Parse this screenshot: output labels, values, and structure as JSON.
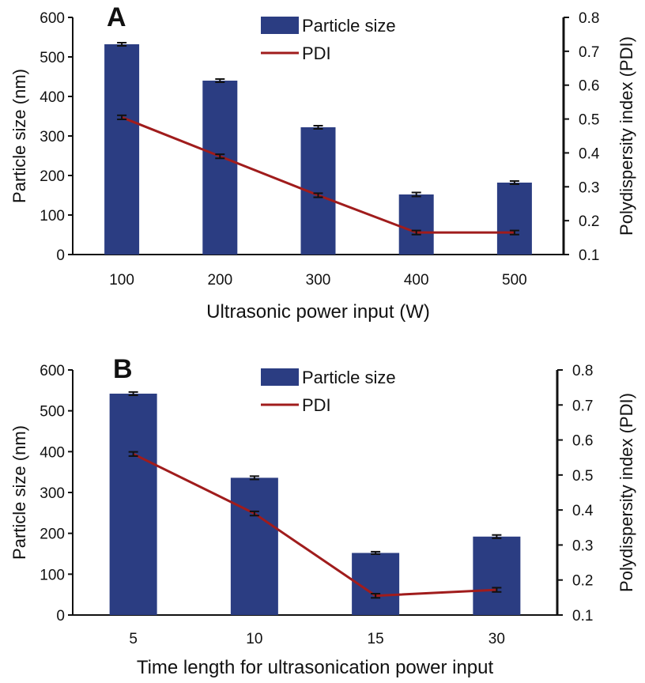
{
  "chart_data": [
    {
      "type": "bar",
      "panel_label": "A",
      "categories": [
        "100",
        "200",
        "300",
        "400",
        "500"
      ],
      "xlabel": "Ultrasonic power input (W)",
      "ylabel": "Particle size (nm)",
      "y2label": "Polydispersity index (PDI)",
      "ylim": [
        0,
        600
      ],
      "yticks": [
        "0",
        "100",
        "200",
        "300",
        "400",
        "500",
        "600"
      ],
      "y2lim": [
        0.1,
        0.8
      ],
      "y2ticks": [
        "0.1",
        "0.2",
        "0.3",
        "0.4",
        "0.5",
        "0.6",
        "0.7",
        "0.8"
      ],
      "legend_position": "top-center",
      "series": [
        {
          "name": "Particle size",
          "type": "bar",
          "axis": "left",
          "color": "#2b3d82",
          "values": [
            532,
            440,
            322,
            152,
            182
          ],
          "errors": [
            4,
            4,
            4,
            5,
            4
          ]
        },
        {
          "name": "PDI",
          "type": "line",
          "axis": "right",
          "color": "#a01c1c",
          "values": [
            0.505,
            0.39,
            0.275,
            0.165,
            0.165
          ],
          "errors": [
            0.006,
            0.006,
            0.006,
            0.006,
            0.006
          ]
        }
      ]
    },
    {
      "type": "bar",
      "panel_label": "B",
      "categories": [
        "5",
        "10",
        "15",
        "30"
      ],
      "xlabel": "Time length for ultrasonication power input",
      "ylabel": "Particle size (nm)",
      "y2label": "Polydispersity index (PDI)",
      "ylim": [
        0,
        600
      ],
      "yticks": [
        "0",
        "100",
        "200",
        "300",
        "400",
        "500",
        "600"
      ],
      "y2lim": [
        0.1,
        0.8
      ],
      "y2ticks": [
        "0.1",
        "0.2",
        "0.3",
        "0.4",
        "0.5",
        "0.6",
        "0.7",
        "0.8"
      ],
      "legend_position": "top-center",
      "series": [
        {
          "name": "Particle size",
          "type": "bar",
          "axis": "left",
          "color": "#2b3d82",
          "values": [
            542,
            336,
            152,
            192
          ],
          "errors": [
            4,
            4,
            3,
            4
          ]
        },
        {
          "name": "PDI",
          "type": "line",
          "axis": "right",
          "color": "#a01c1c",
          "values": [
            0.56,
            0.39,
            0.155,
            0.172
          ],
          "errors": [
            0.006,
            0.006,
            0.006,
            0.006
          ]
        }
      ]
    }
  ]
}
